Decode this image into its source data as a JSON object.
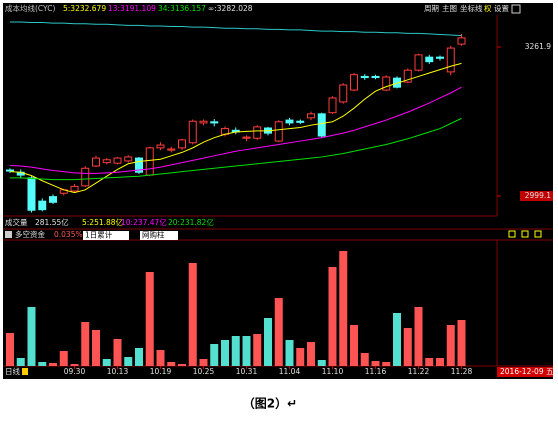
{
  "chart_data": [
    {
      "type": "candlestick",
      "title": "成本均线(CYC)",
      "open": [
        3045,
        3041,
        3031,
        2990,
        2998,
        3004,
        3008,
        3017,
        3052,
        3058,
        3057,
        3061,
        3066,
        3036,
        3084,
        3080,
        3084,
        3093,
        3128,
        3130,
        3108,
        3115,
        3101,
        3101,
        3119,
        3096,
        3133,
        3131,
        3137,
        3144,
        3146,
        3165,
        3186,
        3210,
        3210,
        3186,
        3207,
        3200,
        3221,
        3244,
        3244,
        3218,
        3267
      ],
      "high": [
        3048,
        3046,
        3034,
        2995,
        3002,
        3012,
        3020,
        3052,
        3070,
        3066,
        3068,
        3071,
        3068,
        3086,
        3094,
        3086,
        3100,
        3134,
        3134,
        3135,
        3122,
        3120,
        3106,
        3124,
        3121,
        3133,
        3137,
        3134,
        3148,
        3146,
        3175,
        3198,
        3216,
        3214,
        3213,
        3212,
        3210,
        3224,
        3250,
        3248,
        3247,
        3264,
        3285
      ],
      "low": [
        3040,
        3030,
        2970,
        2972,
        2985,
        3000,
        3005,
        3015,
        3050,
        3055,
        3055,
        3058,
        3038,
        3034,
        3080,
        3076,
        3080,
        3090,
        3124,
        3122,
        3104,
        3108,
        3096,
        3098,
        3106,
        3094,
        3124,
        3126,
        3133,
        3102,
        3144,
        3162,
        3184,
        3204,
        3205,
        3184,
        3189,
        3198,
        3219,
        3232,
        3238,
        3212,
        3264
      ],
      "close": [
        3043,
        3036,
        2974,
        2975,
        2988,
        3010,
        3016,
        3048,
        3066,
        3063,
        3066,
        3068,
        3041,
        3084,
        3089,
        3082,
        3098,
        3131,
        3131,
        3128,
        3118,
        3112,
        3103,
        3121,
        3110,
        3130,
        3128,
        3129,
        3144,
        3105,
        3172,
        3195,
        3213,
        3208,
        3208,
        3209,
        3191,
        3221,
        3248,
        3236,
        3242,
        3260,
        3278
      ],
      "up_color": "#ff3c3c",
      "down_color": "#54fcfc",
      "series": [
        {
          "name": "5:3232.679",
          "color": "#ffff00",
          "values": [
            3042,
            3041,
            3035,
            3026,
            3018,
            3010,
            3005,
            3010,
            3022,
            3034,
            3046,
            3056,
            3060,
            3062,
            3064,
            3070,
            3076,
            3084,
            3094,
            3102,
            3108,
            3112,
            3113,
            3114,
            3114,
            3116,
            3118,
            3120,
            3124,
            3127,
            3130,
            3140,
            3154,
            3170,
            3184,
            3192,
            3198,
            3204,
            3210,
            3216,
            3222,
            3228,
            3233
          ]
        },
        {
          "name": "13:3191.109",
          "color": "#ff00ff",
          "values": [
            3053,
            3052,
            3050,
            3047,
            3044,
            3042,
            3040,
            3039,
            3039,
            3040,
            3041,
            3043,
            3045,
            3047,
            3050,
            3054,
            3058,
            3062,
            3066,
            3070,
            3074,
            3078,
            3081,
            3084,
            3087,
            3090,
            3093,
            3096,
            3099,
            3102,
            3106,
            3110,
            3115,
            3121,
            3127,
            3133,
            3140,
            3147,
            3155,
            3163,
            3172,
            3181,
            3191
          ]
        },
        {
          "name": "34:3136.157",
          "color": "#00e000",
          "values": [
            3031,
            3031,
            3030,
            3029,
            3028,
            3028,
            3028,
            3029,
            3030,
            3031,
            3032,
            3033,
            3034,
            3036,
            3038,
            3040,
            3042,
            3044,
            3046,
            3048,
            3050,
            3052,
            3054,
            3056,
            3058,
            3060,
            3062,
            3064,
            3066,
            3068,
            3071,
            3074,
            3078,
            3082,
            3086,
            3090,
            3095,
            3100,
            3106,
            3112,
            3118,
            3127,
            3136
          ]
        },
        {
          "name": "∞:3282.028",
          "color": "#2cc8c8",
          "values": [
            3306,
            3306,
            3305,
            3305,
            3304,
            3304,
            3303,
            3303,
            3302,
            3302,
            3301,
            3300,
            3300,
            3299,
            3299,
            3298,
            3298,
            3297,
            3297,
            3296,
            3295,
            3295,
            3294,
            3294,
            3293,
            3293,
            3292,
            3292,
            3291,
            3290,
            3290,
            3289,
            3289,
            3288,
            3288,
            3287,
            3287,
            3286,
            3286,
            3285,
            3284,
            3283,
            3282
          ]
        }
      ],
      "ylim": [
        2965.6,
        3339.5
      ],
      "yticks": [
        2999.1,
        3261.9
      ]
    },
    {
      "type": "bar",
      "title": "多空资金",
      "categories": [
        null,
        null,
        null,
        null,
        null,
        null,
        "09.30",
        null,
        null,
        null,
        "10.13",
        null,
        null,
        null,
        "10.19",
        null,
        null,
        null,
        "10.25",
        null,
        null,
        null,
        "10.31",
        null,
        null,
        null,
        "11.04",
        null,
        null,
        null,
        "11.10",
        null,
        null,
        null,
        "11.16",
        null,
        null,
        null,
        "11.22",
        null,
        null,
        null,
        "11.28"
      ],
      "values": [
        33,
        8,
        59,
        4,
        3,
        15,
        2,
        44,
        36,
        7,
        27,
        9,
        18,
        94,
        16,
        4,
        2,
        103,
        7,
        22,
        26,
        30,
        30,
        32,
        48,
        68,
        26,
        18,
        24,
        6,
        99,
        115,
        41,
        13,
        5,
        4,
        53,
        38,
        59,
        8,
        8,
        41,
        46
      ],
      "colors": [
        "#ff5454",
        "#54e0d0",
        "#54e0d0",
        "#54e0d0",
        "#ff5454",
        "#ff5454",
        "#ff5454",
        "#ff5454",
        "#ff5454",
        "#54e0d0",
        "#ff5454",
        "#54e0d0",
        "#54e0d0",
        "#ff5454",
        "#ff5454",
        "#ff5454",
        "#ff5454",
        "#ff5454",
        "#ff5454",
        "#54e0d0",
        "#54e0d0",
        "#54e0d0",
        "#54e0d0",
        "#ff5454",
        "#54e0d0",
        "#ff5454",
        "#54e0d0",
        "#ff5454",
        "#ff5454",
        "#54e0d0",
        "#ff5454",
        "#ff5454",
        "#ff5454",
        "#ff5454",
        "#ff5454",
        "#ff5454",
        "#54e0d0",
        "#ff5454",
        "#ff5454",
        "#ff5454",
        "#ff5454",
        "#ff5454",
        "#ff5454"
      ],
      "ylim": [
        0,
        130
      ]
    }
  ],
  "toolbar": [
    "周期",
    "主图",
    "坐标线",
    "权",
    "设置"
  ],
  "volume": {
    "label": "成交量",
    "total": "281.55亿",
    "ma": [
      "5:251.88亿",
      "10:237.47亿",
      "20:231.82亿"
    ]
  },
  "fund": {
    "pct": "0.035%",
    "select1": "1日累计",
    "select2": "网购柱"
  },
  "footer": {
    "period": "日线",
    "date": "2016-12-09 五"
  },
  "caption": "（图2）↵"
}
